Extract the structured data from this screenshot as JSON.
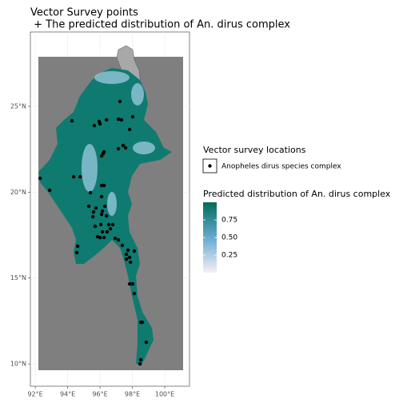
{
  "chart_data": {
    "type": "scatter",
    "title": "Vector Survey points",
    "subtitle": " + The predicted distribution of An. dirus complex",
    "x": [
      97.23,
      97.33,
      97.14,
      96.4,
      95.95,
      95.65,
      96.0,
      94.27,
      98.02,
      97.83,
      97.58,
      97.14,
      97.43,
      96.25,
      96.1,
      96.2,
      94.37,
      94.77,
      92.3,
      92.89,
      96.1,
      96.25,
      95.41,
      96.1,
      95.31,
      95.75,
      95.6,
      96.15,
      96.3,
      95.56,
      96.1,
      96.4,
      96.05,
      96.54,
      96.79,
      96.64,
      95.7,
      96.44,
      96.15,
      95.85,
      96.0,
      96.25,
      96.94,
      97.14,
      97.38,
      97.73,
      97.63,
      97.63,
      97.83,
      98.12,
      97.88,
      94.62,
      94.57,
      97.83,
      98.02,
      98.12,
      98.52,
      98.62,
      98.86,
      98.52,
      98.47
    ],
    "series": [
      {
        "name": "Anopheles dirus species complex",
        "color": "#000000",
        "values": [
          25.28,
          24.21,
          24.25,
          24.21,
          24.12,
          23.88,
          23.98,
          24.16,
          24.39,
          23.65,
          22.58,
          22.53,
          22.72,
          22.35,
          22.11,
          22.25,
          20.9,
          20.9,
          20.81,
          20.11,
          20.39,
          20.39,
          19.97,
          19.74,
          19.18,
          19.08,
          18.85,
          18.9,
          19.18,
          18.57,
          18.71,
          18.62,
          18.11,
          18.11,
          18.11,
          17.87,
          18.01,
          17.69,
          17.69,
          17.41,
          17.36,
          17.36,
          17.31,
          17.22,
          16.9,
          16.62,
          16.38,
          16.1,
          16.2,
          16.57,
          15.92,
          16.85,
          16.48,
          14.66,
          14.66,
          14.1,
          12.42,
          12.42,
          11.26,
          10.24,
          10.0
        ]
      }
    ],
    "legend_title": "Vector survey locations",
    "xlim": [
      91.7,
      101.53
    ],
    "ylim": [
      8.7,
      29.33
    ],
    "xticks": [
      {
        "value": 92,
        "label": "92°E"
      },
      {
        "value": 94,
        "label": "94°E"
      },
      {
        "value": 96,
        "label": "96°E"
      },
      {
        "value": 98,
        "label": "98°E"
      },
      {
        "value": 100,
        "label": "100°E"
      }
    ],
    "yticks": [
      {
        "value": 10,
        "label": "10°N"
      },
      {
        "value": 15,
        "label": "15°N"
      },
      {
        "value": 20,
        "label": "20°N"
      },
      {
        "value": 25,
        "label": "25°N"
      }
    ],
    "grid": true,
    "colorbar": {
      "title": "Predicted distribution of An. dirus complex",
      "lim": [
        0,
        1
      ],
      "ticks": [
        0.25,
        {
          "value": 0.5,
          "label": "0.50"
        },
        0.75
      ],
      "colors": [
        "#f6eff7",
        "#67a9cf",
        "#016c59"
      ]
    }
  }
}
